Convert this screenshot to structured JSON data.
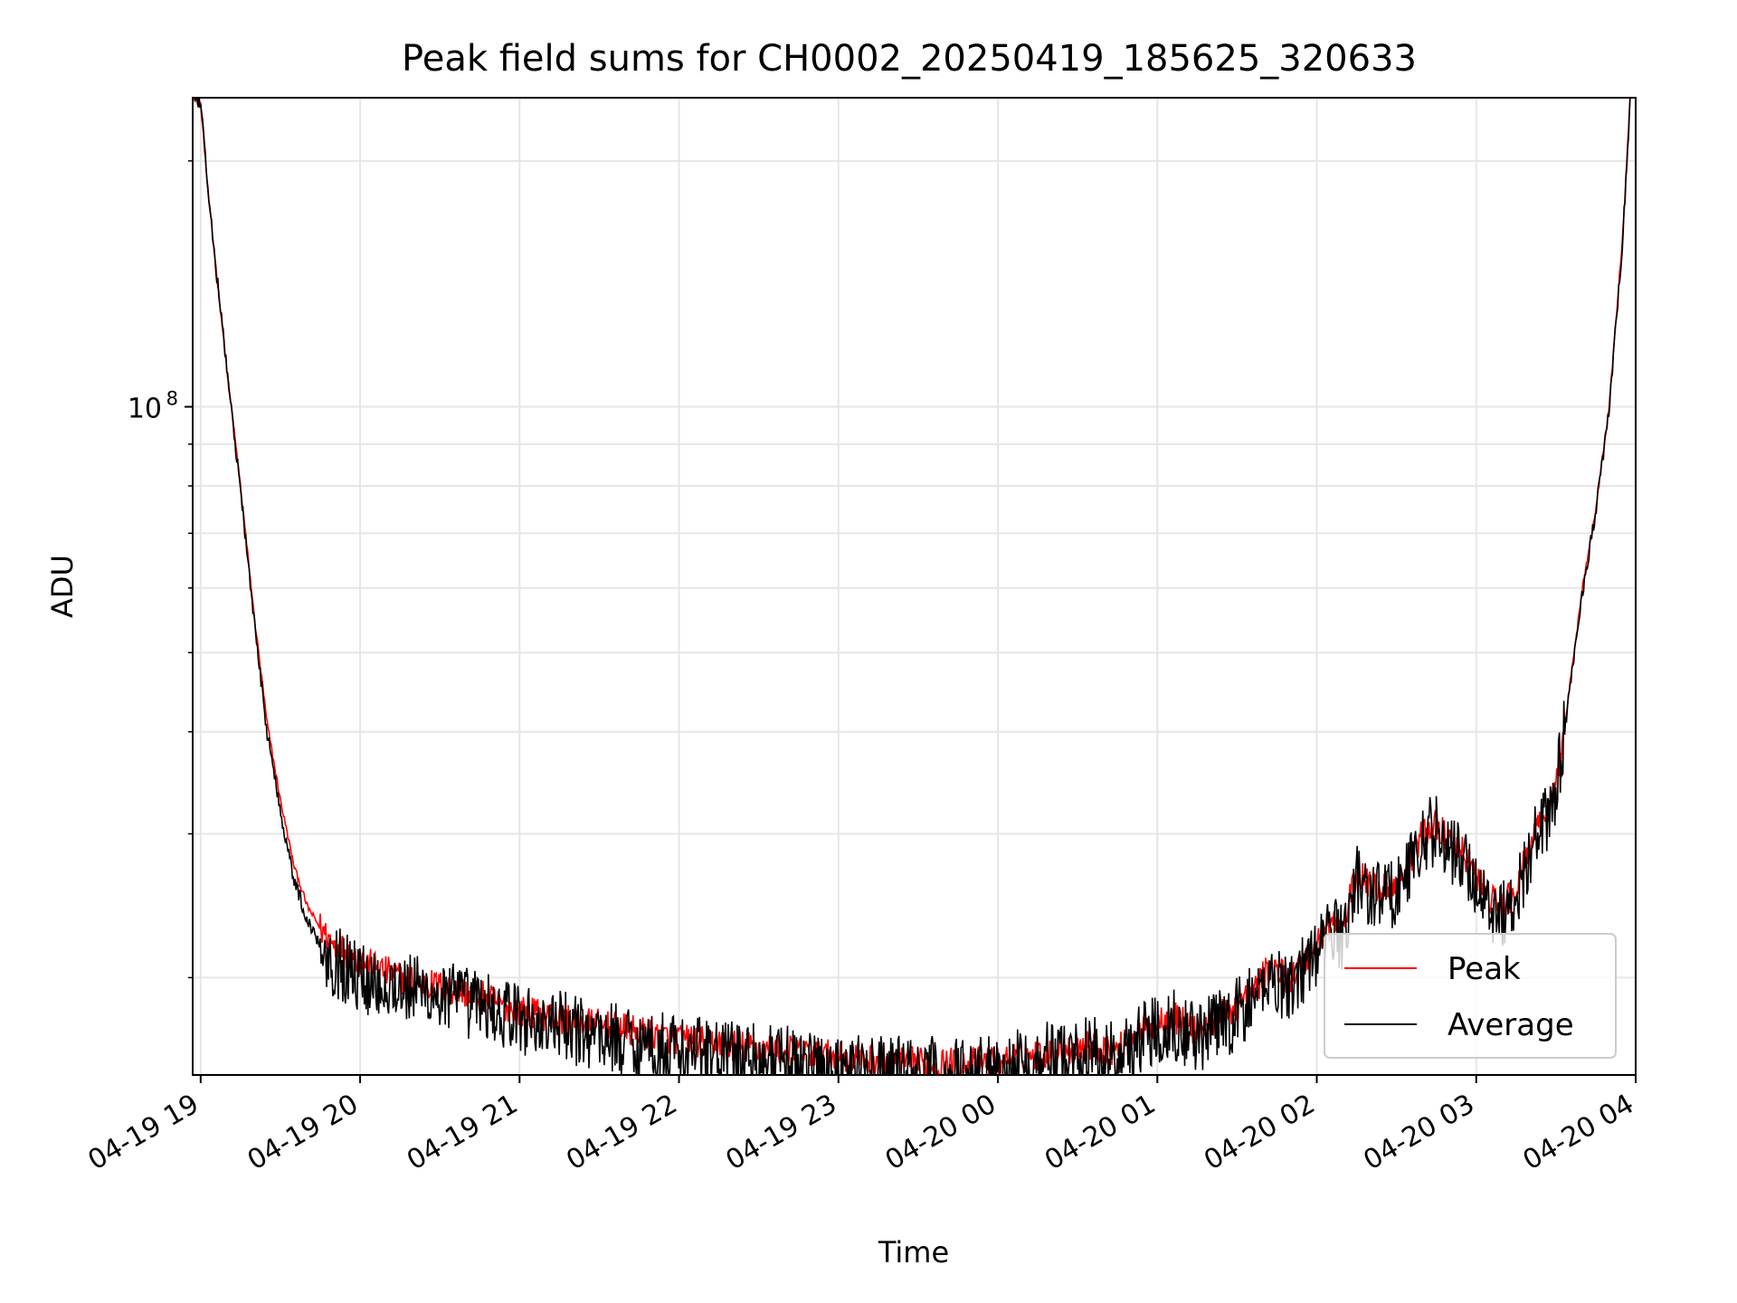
{
  "chart_data": {
    "type": "line",
    "title": "Peak field sums for CH0002_20250419_185625_320633",
    "xlabel": "Time",
    "ylabel": "ADU",
    "y_scale": "log",
    "ylim": [
      15200000,
      239000000
    ],
    "xlim": [
      "2025-04-19 18:57",
      "2025-04-20 04:00"
    ],
    "x_ticks": [
      {
        "value": "2025-04-19 19:00",
        "label": "04-19 19"
      },
      {
        "value": "2025-04-19 20:00",
        "label": "04-19 20"
      },
      {
        "value": "2025-04-19 21:00",
        "label": "04-19 21"
      },
      {
        "value": "2025-04-19 22:00",
        "label": "04-19 22"
      },
      {
        "value": "2025-04-19 23:00",
        "label": "04-19 23"
      },
      {
        "value": "2025-04-20 00:00",
        "label": "04-20 00"
      },
      {
        "value": "2025-04-20 01:00",
        "label": "04-20 01"
      },
      {
        "value": "2025-04-20 02:00",
        "label": "04-20 02"
      },
      {
        "value": "2025-04-20 03:00",
        "label": "04-20 03"
      },
      {
        "value": "2025-04-20 04:00",
        "label": "04-20 04"
      }
    ],
    "y_ticks": [
      {
        "value": 100000000,
        "label_base": "10",
        "label_exp": "8"
      }
    ],
    "y_minor_ticks": [
      20000000,
      30000000,
      40000000,
      50000000,
      60000000,
      70000000,
      80000000,
      90000000,
      200000000
    ],
    "grid": true,
    "legend_placement": "lower-right",
    "series": [
      {
        "name": "Peak",
        "color": "#ff0000",
        "noise": 0.02,
        "x": [
          "2025-04-19 18:57",
          "2025-04-19 19:00",
          "2025-04-19 19:03",
          "2025-04-19 19:10",
          "2025-04-19 19:15",
          "2025-04-19 19:20",
          "2025-04-19 19:25",
          "2025-04-19 19:30",
          "2025-04-19 19:35",
          "2025-04-19 19:40",
          "2025-04-19 19:45",
          "2025-04-19 19:50",
          "2025-04-19 20:00",
          "2025-04-19 20:15",
          "2025-04-19 20:30",
          "2025-04-19 20:45",
          "2025-04-19 21:00",
          "2025-04-19 21:30",
          "2025-04-19 22:00",
          "2025-04-19 22:30",
          "2025-04-19 23:00",
          "2025-04-19 23:30",
          "2025-04-19 23:45",
          "2025-04-20 00:00",
          "2025-04-20 00:20",
          "2025-04-20 00:35",
          "2025-04-20 00:45",
          "2025-04-20 00:55",
          "2025-04-20 01:05",
          "2025-04-20 01:15",
          "2025-04-20 01:25",
          "2025-04-20 01:35",
          "2025-04-20 01:42",
          "2025-04-20 01:50",
          "2025-04-20 02:00",
          "2025-04-20 02:06",
          "2025-04-20 02:10",
          "2025-04-20 02:15",
          "2025-04-20 02:20",
          "2025-04-20 02:30",
          "2025-04-20 02:40",
          "2025-04-20 02:45",
          "2025-04-20 02:50",
          "2025-04-20 02:55",
          "2025-04-20 03:00",
          "2025-04-20 03:05",
          "2025-04-20 03:10",
          "2025-04-20 03:15",
          "2025-04-20 03:20",
          "2025-04-20 03:25",
          "2025-04-20 03:30",
          "2025-04-20 03:35",
          "2025-04-20 03:40",
          "2025-04-20 03:45",
          "2025-04-20 03:50",
          "2025-04-20 03:55",
          "2025-04-20 03:58"
        ],
        "y": [
          240000000,
          235000000,
          180000000,
          110000000,
          80000000,
          56000000,
          41000000,
          33000000,
          27500000,
          24500000,
          23000000,
          22000000,
          21000000,
          20000000,
          19500000,
          19000000,
          18200000,
          17500000,
          16800000,
          16400000,
          16000000,
          15700000,
          15700000,
          15800000,
          16200000,
          16500000,
          16300000,
          17300000,
          18000000,
          17200000,
          18000000,
          19000000,
          20500000,
          20000000,
          22000000,
          23500000,
          23000000,
          27000000,
          25800000,
          26000000,
          30000000,
          31000000,
          29000000,
          28500000,
          26500000,
          25000000,
          24500000,
          25500000,
          29000000,
          31000000,
          34000000,
          45000000,
          60000000,
          75000000,
          100000000,
          160000000,
          240000000
        ]
      },
      {
        "name": "Average",
        "color": "#000000",
        "noise": 0.045,
        "x": [
          "2025-04-19 18:57",
          "2025-04-19 19:00",
          "2025-04-19 19:03",
          "2025-04-19 19:10",
          "2025-04-19 19:15",
          "2025-04-19 19:20",
          "2025-04-19 19:25",
          "2025-04-19 19:30",
          "2025-04-19 19:35",
          "2025-04-19 19:40",
          "2025-04-19 19:45",
          "2025-04-19 19:50",
          "2025-04-19 20:00",
          "2025-04-19 20:15",
          "2025-04-19 20:30",
          "2025-04-19 20:45",
          "2025-04-19 21:00",
          "2025-04-19 21:30",
          "2025-04-19 22:00",
          "2025-04-19 22:30",
          "2025-04-19 23:00",
          "2025-04-19 23:30",
          "2025-04-19 23:45",
          "2025-04-20 00:00",
          "2025-04-20 00:20",
          "2025-04-20 00:35",
          "2025-04-20 00:45",
          "2025-04-20 00:55",
          "2025-04-20 01:05",
          "2025-04-20 01:15",
          "2025-04-20 01:25",
          "2025-04-20 01:35",
          "2025-04-20 01:42",
          "2025-04-20 01:50",
          "2025-04-20 02:00",
          "2025-04-20 02:06",
          "2025-04-20 02:10",
          "2025-04-20 02:15",
          "2025-04-20 02:20",
          "2025-04-20 02:30",
          "2025-04-20 02:40",
          "2025-04-20 02:45",
          "2025-04-20 02:50",
          "2025-04-20 02:55",
          "2025-04-20 03:00",
          "2025-04-20 03:05",
          "2025-04-20 03:10",
          "2025-04-20 03:15",
          "2025-04-20 03:20",
          "2025-04-20 03:25",
          "2025-04-20 03:30",
          "2025-04-20 03:35",
          "2025-04-20 03:40",
          "2025-04-20 03:45",
          "2025-04-20 03:50",
          "2025-04-20 03:55",
          "2025-04-20 03:58"
        ],
        "y": [
          240000000,
          235000000,
          180000000,
          110000000,
          79000000,
          55000000,
          40000000,
          32000000,
          26500000,
          23500000,
          22000000,
          21000000,
          20000000,
          19500000,
          19000000,
          18500000,
          17800000,
          17000000,
          16300000,
          15900000,
          15500000,
          15300000,
          15300000,
          15500000,
          16000000,
          16200000,
          16000000,
          17000000,
          17700000,
          16900000,
          17600000,
          18600000,
          20000000,
          19600000,
          21500000,
          23000000,
          22500000,
          26500000,
          25300000,
          25500000,
          29500000,
          30500000,
          28500000,
          28000000,
          26000000,
          24500000,
          24000000,
          25000000,
          28500000,
          30500000,
          33500000,
          44500000,
          59500000,
          74500000,
          99000000,
          158000000,
          238000000
        ]
      }
    ]
  }
}
